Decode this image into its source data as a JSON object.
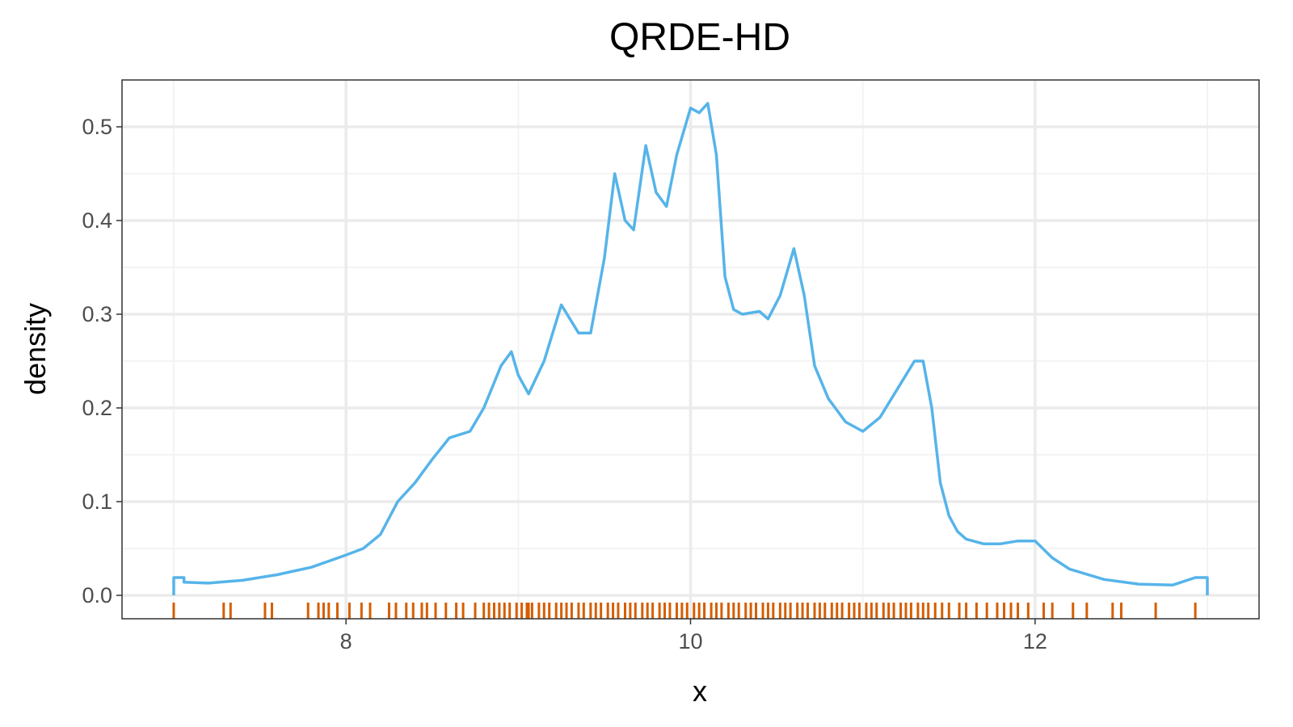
{
  "chart_data": {
    "type": "line",
    "title": "QRDE-HD",
    "xlabel": "x",
    "ylabel": "density",
    "xlim": [
      6.7,
      13.3
    ],
    "ylim": [
      -0.025,
      0.55
    ],
    "x_ticks": [
      8,
      10,
      12
    ],
    "x_tick_labels": [
      "8",
      "10",
      "12"
    ],
    "y_ticks": [
      0.0,
      0.1,
      0.2,
      0.3,
      0.4,
      0.5
    ],
    "y_tick_labels": [
      "0.0",
      "0.1",
      "0.2",
      "0.3",
      "0.4",
      "0.5"
    ],
    "grid": true,
    "colors": {
      "density": "#56b4e9",
      "rug": "#d55e00"
    },
    "series": [
      {
        "x": [
          7.0,
          7.0,
          7.06,
          7.06,
          7.2,
          7.4,
          7.6,
          7.8,
          8.0,
          8.1,
          8.2,
          8.3,
          8.4,
          8.5,
          8.6,
          8.72,
          8.8,
          8.9,
          8.96,
          9.0,
          9.06,
          9.15,
          9.25,
          9.35,
          9.42,
          9.5,
          9.56,
          9.62,
          9.67,
          9.74,
          9.8,
          9.86,
          9.92,
          10.0,
          10.05,
          10.1,
          10.15,
          10.2,
          10.25,
          10.3,
          10.4,
          10.45,
          10.52,
          10.6,
          10.66,
          10.72,
          10.8,
          10.9,
          11.0,
          11.1,
          11.2,
          11.3,
          11.35,
          11.4,
          11.45,
          11.5,
          11.55,
          11.6,
          11.7,
          11.8,
          11.9,
          12.0,
          12.1,
          12.2,
          12.4,
          12.6,
          12.8,
          12.93,
          12.93,
          13.0,
          13.0
        ],
        "y": [
          0.0,
          0.019,
          0.019,
          0.014,
          0.013,
          0.016,
          0.022,
          0.03,
          0.043,
          0.05,
          0.065,
          0.1,
          0.12,
          0.145,
          0.168,
          0.175,
          0.2,
          0.245,
          0.26,
          0.235,
          0.215,
          0.25,
          0.31,
          0.28,
          0.28,
          0.36,
          0.45,
          0.4,
          0.39,
          0.48,
          0.43,
          0.415,
          0.47,
          0.52,
          0.515,
          0.525,
          0.47,
          0.34,
          0.305,
          0.3,
          0.303,
          0.295,
          0.32,
          0.37,
          0.32,
          0.245,
          0.21,
          0.185,
          0.175,
          0.19,
          0.22,
          0.25,
          0.25,
          0.2,
          0.12,
          0.085,
          0.068,
          0.06,
          0.055,
          0.055,
          0.058,
          0.058,
          0.04,
          0.028,
          0.017,
          0.012,
          0.011,
          0.019,
          0.019,
          0.019,
          0.0
        ]
      }
    ],
    "rug": [
      7.0,
      7.29,
      7.33,
      7.53,
      7.57,
      7.78,
      7.84,
      7.87,
      7.9,
      7.95,
      8.02,
      8.09,
      8.14,
      8.25,
      8.29,
      8.35,
      8.39,
      8.44,
      8.47,
      8.52,
      8.58,
      8.64,
      8.68,
      8.75,
      8.8,
      8.83,
      8.86,
      8.89,
      8.92,
      8.95,
      8.99,
      9.02,
      9.05,
      9.06,
      9.08,
      9.12,
      9.15,
      9.18,
      9.22,
      9.25,
      9.28,
      9.31,
      9.35,
      9.38,
      9.42,
      9.45,
      9.48,
      9.52,
      9.55,
      9.58,
      9.62,
      9.65,
      9.68,
      9.72,
      9.75,
      9.78,
      9.82,
      9.85,
      9.88,
      9.92,
      9.95,
      9.98,
      10.02,
      10.05,
      10.08,
      10.12,
      10.15,
      10.18,
      10.22,
      10.25,
      10.28,
      10.32,
      10.35,
      10.38,
      10.42,
      10.45,
      10.48,
      10.52,
      10.55,
      10.58,
      10.62,
      10.65,
      10.68,
      10.72,
      10.75,
      10.78,
      10.82,
      10.85,
      10.88,
      10.92,
      10.95,
      10.98,
      11.02,
      11.05,
      11.08,
      11.12,
      11.15,
      11.18,
      11.22,
      11.25,
      11.28,
      11.32,
      11.35,
      11.38,
      11.42,
      11.46,
      11.5,
      11.56,
      11.6,
      11.66,
      11.72,
      11.78,
      11.82,
      11.86,
      11.9,
      11.96,
      12.05,
      12.1,
      12.22,
      12.3,
      12.45,
      12.5,
      12.7,
      12.93
    ]
  }
}
